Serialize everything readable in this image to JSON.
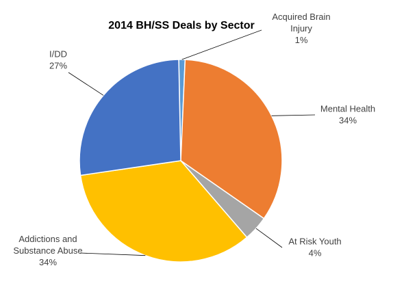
{
  "chart_data": {
    "type": "pie",
    "title": "2014 BH/SS Deals by Sector",
    "slices": [
      {
        "label": [
          "Acquired Brain",
          "Injury"
        ],
        "percent_label": "1%",
        "value": 1,
        "color": "#5B9BD5"
      },
      {
        "label": [
          "Mental Health"
        ],
        "percent_label": "34%",
        "value": 34,
        "color": "#ED7D31"
      },
      {
        "label": [
          "At Risk Youth"
        ],
        "percent_label": "4%",
        "value": 4,
        "color": "#A5A5A5"
      },
      {
        "label": [
          "Addictions and",
          "Substance Abuse"
        ],
        "percent_label": "34%",
        "value": 34,
        "color": "#FFC000"
      },
      {
        "label": [
          "I/DD"
        ],
        "percent_label": "27%",
        "value": 27,
        "color": "#4472C4"
      }
    ],
    "legend": "none",
    "label_placement": "outside with leader lines"
  }
}
